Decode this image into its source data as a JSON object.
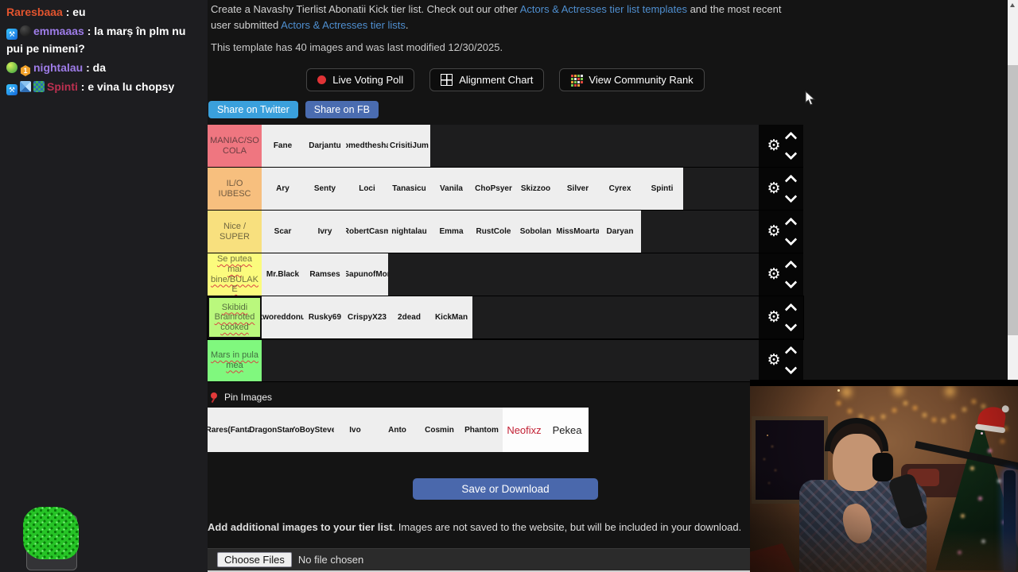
{
  "chat": {
    "messages": [
      {
        "badges": [],
        "user": "Raresbaaa",
        "user_color": "#e2542e",
        "text": "eu"
      },
      {
        "badges": [
          "mod",
          "sub-dark"
        ],
        "user": "emmaaas",
        "user_color": "#9e7ce8",
        "text": "la marș în plm nu pui pe nimeni?"
      },
      {
        "badges": [
          "og-green",
          "gift-1"
        ],
        "user": "nightalau",
        "user_color": "#9e7ce8",
        "text": "da"
      },
      {
        "badges": [
          "mod",
          "cube",
          "pixel"
        ],
        "user": "Spinti",
        "user_color": "#bc3050",
        "text": "e vina lu chopsy"
      }
    ],
    "badge_glyphs": {
      "mod": "⚒",
      "gift-1": "1"
    }
  },
  "site": {
    "intro": {
      "parts": [
        {
          "text": "Create a Navashy Tierlist Abonatii Kick tier list. Check out our other ",
          "link": false
        },
        {
          "text": "Actors & Actresses tier list templates",
          "link": true
        },
        {
          "text": " and the most recent user submitted ",
          "link": false
        },
        {
          "text": "Actors & Actresses tier lists",
          "link": true
        },
        {
          "text": ".",
          "link": false
        }
      ]
    },
    "template_info": "This template has 40 images and was last modified 12/30/2025.",
    "toolbar": {
      "buttons": [
        {
          "icon": "live-dot",
          "label": "Live Voting Poll"
        },
        {
          "icon": "alignment-grid",
          "label": "Alignment Chart"
        },
        {
          "icon": "community-grid",
          "label": "View Community Rank"
        }
      ]
    },
    "share": {
      "twitter": "Share on Twitter",
      "fb": "Share on FB"
    },
    "tiers": {
      "rows": [
        {
          "label": "MANIAC/SOCOLA",
          "color": "#ef7680",
          "misspelled": false,
          "selected": false,
          "items": [
            "Fane",
            "Darjantu",
            "omedthesha",
            "CrisitiJum"
          ]
        },
        {
          "label": "IL/O IUBESC",
          "color": "#f7bf7e",
          "misspelled": false,
          "selected": false,
          "items": [
            "Ary",
            "Senty",
            "Loci",
            "Tanasicu",
            "Vanila",
            "ChoPsyer",
            "Skizzoo",
            "Silver",
            "Cyrex",
            "Spinti"
          ]
        },
        {
          "label": "Nice / SUPER",
          "color": "#f8e07e",
          "misspelled": false,
          "selected": false,
          "items": [
            "Scar",
            "Ivry",
            "RobertCasm",
            "nightalau",
            "Emma",
            "RustCole",
            "Sobolan",
            "MissMoarta",
            "Daryan"
          ]
        },
        {
          "label": "Se putea mai bine/BULAKE",
          "color": "#fbfb7d",
          "misspelled": true,
          "selected": false,
          "items": [
            "Mr.Black",
            "Ramses",
            "SapunofMor"
          ]
        },
        {
          "label": "Skibidi Brainroted cooked",
          "color": "#baf87d",
          "misspelled": true,
          "selected": true,
          "items": [
            "tworeddonu",
            "Rusky69",
            "CrispyX23",
            "2dead",
            "KickMan"
          ]
        },
        {
          "label": "Mars in pula mea",
          "color": "#80f87e",
          "misspelled": true,
          "selected": false,
          "items": []
        }
      ]
    },
    "pin_images_label": "Pin Images",
    "unranked": {
      "items": [
        "Rares(Fanta",
        "DragonStar",
        "YoBoySteve",
        "Ivo",
        "Anto",
        "Cosmin",
        "Phantom"
      ],
      "pinned": [
        {
          "name": "Neofixz",
          "color": "#c32135"
        },
        {
          "name": "Pekea",
          "color": "#1d1d1d"
        }
      ]
    },
    "save_button": "Save or Download",
    "additional": {
      "bold": "Add additional images to your tier list",
      "rest": ". Images are not saved to the website, but will be included in your download."
    },
    "file_input": {
      "button": "Choose Files",
      "status": "No file chosen"
    }
  }
}
